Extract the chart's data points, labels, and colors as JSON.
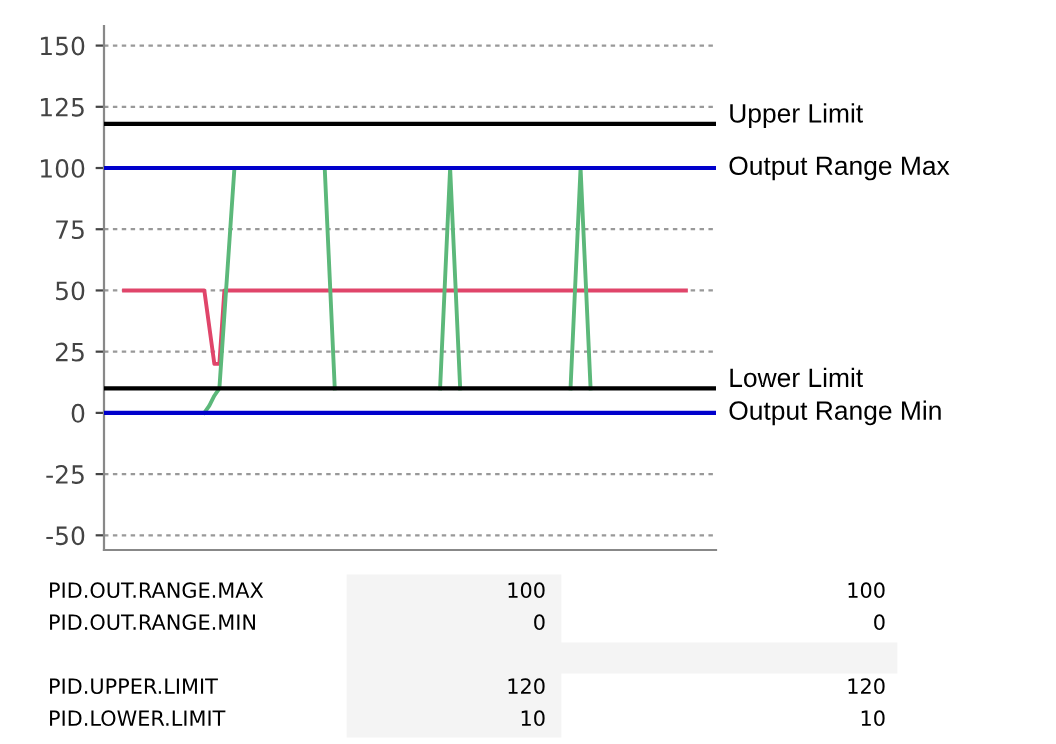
{
  "chart_data": {
    "type": "line",
    "categories": [
      null,
      null,
      null,
      null,
      null,
      null,
      null,
      null,
      null,
      null,
      null,
      null,
      null,
      null,
      null,
      null,
      null,
      null,
      null,
      null,
      null,
      null,
      null,
      null,
      null,
      null,
      null,
      null,
      null,
      null,
      null,
      null,
      null,
      null,
      null,
      null,
      null,
      null,
      null,
      null,
      null,
      null,
      null,
      null,
      null,
      null,
      null,
      null,
      null,
      null,
      null,
      null,
      null,
      null,
      null,
      null,
      null,
      null,
      null,
      null,
      null,
      null,
      null,
      null,
      null,
      null,
      null,
      null,
      null,
      null,
      null,
      null,
      null,
      null,
      null,
      null,
      null,
      null,
      null,
      null,
      null,
      null,
      null,
      null,
      null,
      null,
      null,
      null,
      null,
      null,
      null,
      null,
      null,
      null,
      null,
      null,
      null,
      null,
      null,
      null,
      null,
      null,
      null,
      null,
      null,
      null,
      null,
      null,
      null,
      null,
      null,
      null,
      null,
      null,
      null,
      null,
      null,
      null,
      null,
      null,
      null,
      null,
      null
    ],
    "series": [
      {
        "color": "#e0456a",
        "values": [
          null,
          null,
          null,
          null,
          50,
          50,
          50,
          50,
          50,
          50,
          50,
          50,
          50,
          50,
          50,
          50,
          50,
          50,
          50,
          50,
          50,
          35,
          20,
          20,
          50,
          50,
          50,
          50,
          50,
          50,
          50,
          50,
          50,
          50,
          50,
          50,
          50,
          50,
          50,
          50,
          50,
          50,
          50,
          50,
          50,
          50,
          50,
          50,
          50,
          50,
          50,
          50,
          50,
          50,
          50,
          50,
          50,
          50,
          50,
          50,
          50,
          50,
          50,
          50,
          50,
          50,
          50,
          50,
          50,
          50,
          50,
          50,
          50,
          50,
          50,
          50,
          50,
          50,
          50,
          50,
          50,
          50,
          50,
          50,
          50,
          50,
          50,
          50,
          50,
          50,
          50,
          50,
          50,
          50,
          50,
          50,
          50,
          50,
          50,
          50,
          50,
          50,
          50,
          50,
          50,
          50,
          50,
          50,
          50,
          50,
          50,
          50,
          50,
          50,
          50,
          50,
          50,
          null,
          null,
          null,
          null,
          null,
          null
        ]
      },
      {
        "color": "#5cb87a",
        "values": [
          null,
          null,
          null,
          null,
          null,
          null,
          null,
          null,
          null,
          null,
          null,
          null,
          null,
          null,
          null,
          null,
          null,
          null,
          null,
          null,
          0,
          3,
          7,
          10,
          40,
          70,
          100,
          null,
          null,
          null,
          null,
          null,
          null,
          null,
          null,
          null,
          null,
          null,
          null,
          null,
          null,
          null,
          null,
          null,
          100,
          55,
          10,
          null,
          null,
          null,
          null,
          null,
          null,
          null,
          null,
          null,
          null,
          null,
          null,
          null,
          null,
          null,
          null,
          null,
          null,
          null,
          null,
          10,
          55,
          100,
          55,
          10,
          null,
          null,
          null,
          null,
          null,
          null,
          null,
          null,
          null,
          null,
          null,
          null,
          null,
          null,
          null,
          null,
          null,
          null,
          null,
          null,
          null,
          10,
          55,
          100,
          55,
          10,
          null,
          null,
          null,
          null,
          null,
          null,
          null,
          null,
          null,
          null,
          null,
          null,
          null,
          null,
          null,
          null,
          null,
          null,
          null,
          null,
          null,
          null,
          null,
          null,
          null
        ]
      },
      {
        "name": "Upper Limit",
        "color": "#000000",
        "values": [
          118,
          118,
          118,
          118,
          118,
          118,
          118,
          118,
          118,
          118,
          118,
          118,
          118,
          118,
          118,
          118,
          118,
          118,
          118,
          118,
          118,
          118,
          118,
          118,
          118,
          118,
          118,
          118,
          118,
          118,
          118,
          118,
          118,
          118,
          118,
          118,
          118,
          118,
          118,
          118,
          118,
          118,
          118,
          118,
          118,
          118,
          118,
          118,
          118,
          118,
          118,
          118,
          118,
          118,
          118,
          118,
          118,
          118,
          118,
          118,
          118,
          118,
          118,
          118,
          118,
          118,
          118,
          118,
          118,
          118,
          118,
          118,
          118,
          118,
          118,
          118,
          118,
          118,
          118,
          118,
          118,
          118,
          118,
          118,
          118,
          118,
          118,
          118,
          118,
          118,
          118,
          118,
          118,
          118,
          118,
          118,
          118,
          118,
          118,
          118,
          118,
          118,
          118,
          118,
          118,
          118,
          118,
          118,
          118,
          118,
          118,
          118,
          118,
          118,
          118,
          118,
          118,
          118,
          118,
          118,
          118,
          118,
          118
        ]
      },
      {
        "name": "Output Range Max",
        "color": "#0000cc",
        "values": [
          100,
          100,
          100,
          100,
          100,
          100,
          100,
          100,
          100,
          100,
          100,
          100,
          100,
          100,
          100,
          100,
          100,
          100,
          100,
          100,
          100,
          100,
          100,
          100,
          100,
          100,
          100,
          100,
          100,
          100,
          100,
          100,
          100,
          100,
          100,
          100,
          100,
          100,
          100,
          100,
          100,
          100,
          100,
          100,
          100,
          100,
          100,
          100,
          100,
          100,
          100,
          100,
          100,
          100,
          100,
          100,
          100,
          100,
          100,
          100,
          100,
          100,
          100,
          100,
          100,
          100,
          100,
          100,
          100,
          100,
          100,
          100,
          100,
          100,
          100,
          100,
          100,
          100,
          100,
          100,
          100,
          100,
          100,
          100,
          100,
          100,
          100,
          100,
          100,
          100,
          100,
          100,
          100,
          100,
          100,
          100,
          100,
          100,
          100,
          100,
          100,
          100,
          100,
          100,
          100,
          100,
          100,
          100,
          100,
          100,
          100,
          100,
          100,
          100,
          100,
          100,
          100,
          100,
          100,
          100,
          100,
          100,
          100
        ]
      },
      {
        "name": "Lower Limit",
        "color": "#000000",
        "values": [
          10,
          10,
          10,
          10,
          10,
          10,
          10,
          10,
          10,
          10,
          10,
          10,
          10,
          10,
          10,
          10,
          10,
          10,
          10,
          10,
          10,
          10,
          10,
          10,
          10,
          10,
          10,
          10,
          10,
          10,
          10,
          10,
          10,
          10,
          10,
          10,
          10,
          10,
          10,
          10,
          10,
          10,
          10,
          10,
          10,
          10,
          10,
          10,
          10,
          10,
          10,
          10,
          10,
          10,
          10,
          10,
          10,
          10,
          10,
          10,
          10,
          10,
          10,
          10,
          10,
          10,
          10,
          10,
          10,
          10,
          10,
          10,
          10,
          10,
          10,
          10,
          10,
          10,
          10,
          10,
          10,
          10,
          10,
          10,
          10,
          10,
          10,
          10,
          10,
          10,
          10,
          10,
          10,
          10,
          10,
          10,
          10,
          10,
          10,
          10,
          10,
          10,
          10,
          10,
          10,
          10,
          10,
          10,
          10,
          10,
          10,
          10,
          10,
          10,
          10,
          10,
          10,
          10,
          10,
          10,
          10,
          10,
          10
        ]
      },
      {
        "name": "Output Range Min",
        "color": "#0000cc",
        "values": [
          0,
          0,
          0,
          0,
          0,
          0,
          0,
          0,
          0,
          0,
          0,
          0,
          0,
          0,
          0,
          0,
          0,
          0,
          0,
          0,
          0,
          0,
          0,
          0,
          0,
          0,
          0,
          0,
          0,
          0,
          0,
          0,
          0,
          0,
          0,
          0,
          0,
          0,
          0,
          0,
          0,
          0,
          0,
          0,
          0,
          0,
          0,
          0,
          0,
          0,
          0,
          0,
          0,
          0,
          0,
          0,
          0,
          0,
          0,
          0,
          0,
          0,
          0,
          0,
          0,
          0,
          0,
          0,
          0,
          0,
          0,
          0,
          0,
          0,
          0,
          0,
          0,
          0,
          0,
          0,
          0,
          0,
          0,
          0,
          0,
          0,
          0,
          0,
          0,
          0,
          0,
          0,
          0,
          0,
          0,
          0,
          0,
          0,
          0,
          0,
          0,
          0,
          0,
          0,
          0,
          0,
          0,
          0,
          0,
          0,
          0,
          0,
          0,
          0,
          0,
          0,
          0,
          0,
          0,
          0,
          0,
          0,
          0
        ]
      }
    ],
    "ylim": [
      -56,
      158
    ],
    "yticks": [
      -50,
      -25,
      0,
      25,
      50,
      75,
      100,
      125,
      150
    ],
    "grid": "y",
    "tick_labels": "y",
    "annotations": [
      "PID.OUT.RANGE.MAX",
      "100",
      "100",
      "PID.OUT.RANGE.MIN",
      "0",
      "0",
      "PID.UPPER.LIMIT",
      "120",
      "120",
      "PID.LOWER.LIMIT",
      "10",
      "10"
    ]
  }
}
